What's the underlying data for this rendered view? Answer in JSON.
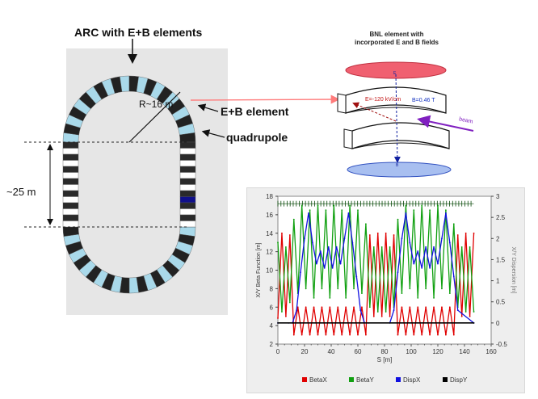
{
  "colors": {
    "panel_bg": "#e6e6e6",
    "magnet_light": "#a9d9ea",
    "magnet_dark": "#222222",
    "magnet_blue": "#10108a",
    "beam_line": "#ff7b7b",
    "plate_top": "#f06070",
    "plate_bottom": "#a0b8f0",
    "betax": "#e00000",
    "betay": "#10a010",
    "dispx": "#1010e0",
    "dispy": "#000000"
  },
  "left_diagram": {
    "arc_label": "ARC with E+B elements",
    "radius_label": "R~16 m",
    "element_label": "E+B element",
    "quad_label": "quadrupole",
    "straight_label": "~25 m"
  },
  "bnl_diagram": {
    "title_line1": "BNL element with",
    "title_line2": "incorporated E and B fields",
    "e_field": "E=-120  kV/cm",
    "b_field": "B=0.46 T",
    "beam": "beam",
    "e_marker": "E",
    "b_marker": "B"
  },
  "chart_data": {
    "type": "line",
    "xlabel": "S [m]",
    "ylabel": "X/Y Beta Function [m]",
    "y2label": "X/Y Dispersion [m]",
    "xlim": [
      0,
      160
    ],
    "ylim": [
      2,
      18
    ],
    "y2lim": [
      -0.5,
      3
    ],
    "x_ticks": [
      0,
      20,
      40,
      60,
      80,
      100,
      120,
      140,
      160
    ],
    "y_ticks": [
      2,
      4,
      6,
      8,
      10,
      12,
      14,
      16,
      18
    ],
    "y2_ticks": [
      -0.5,
      0,
      0.5,
      1,
      1.5,
      2,
      2.5,
      3
    ],
    "x_tick_labels": [
      "0",
      "20",
      "40",
      "60",
      "80",
      "100",
      "120",
      "140",
      "160"
    ],
    "y_tick_labels": [
      "2",
      "4",
      "6",
      "8",
      "10",
      "12",
      "14",
      "16",
      "18"
    ],
    "y2_tick_labels": [
      "-0.5",
      "0",
      "0.5",
      "1",
      "1.5",
      "2",
      "2.5",
      "3"
    ],
    "legend": [
      "BetaX",
      "BetaY",
      "DispX",
      "DispY"
    ],
    "legend_position": "bottom",
    "series": [
      {
        "name": "BetaX",
        "axis": "left",
        "color": "#e00000",
        "x": [
          0,
          3,
          6,
          9,
          12,
          15,
          18,
          21,
          24,
          27,
          30,
          33,
          36,
          39,
          42,
          45,
          48,
          51,
          54,
          57,
          60,
          63,
          66,
          69,
          72,
          75,
          78,
          81,
          84,
          87,
          90,
          93,
          96,
          99,
          102,
          105,
          108,
          111,
          114,
          117,
          120,
          123,
          126,
          129,
          132,
          135,
          138,
          141,
          144,
          147
        ],
        "y": [
          4.8,
          14.0,
          5.0,
          13.8,
          3.0,
          6.0,
          3.0,
          6.0,
          3.0,
          6.0,
          3.0,
          6.0,
          3.0,
          6.0,
          3.0,
          6.0,
          3.0,
          6.0,
          3.0,
          6.0,
          3.0,
          6.0,
          3.0,
          13.8,
          5.0,
          14.0,
          5.0,
          14.0,
          5.0,
          13.8,
          3.0,
          6.0,
          3.0,
          6.0,
          3.0,
          6.0,
          3.0,
          6.0,
          3.0,
          6.0,
          3.0,
          6.0,
          3.0,
          6.0,
          3.0,
          13.8,
          5.0,
          14.0,
          5.0,
          14.0
        ]
      },
      {
        "name": "BetaY",
        "axis": "left",
        "color": "#10a010",
        "x": [
          0,
          3,
          6,
          9,
          12,
          15,
          18,
          21,
          24,
          27,
          30,
          33,
          36,
          39,
          42,
          45,
          48,
          51,
          54,
          57,
          60,
          63,
          66,
          69,
          72,
          75,
          78,
          81,
          84,
          87,
          90,
          93,
          96,
          99,
          102,
          105,
          108,
          111,
          114,
          117,
          120,
          123,
          126,
          129,
          132,
          135,
          138,
          141,
          144,
          147
        ],
        "y": [
          13.0,
          5.5,
          12.5,
          6.5,
          15.5,
          7.5,
          17.0,
          8.0,
          16.5,
          7.0,
          17.0,
          8.0,
          16.5,
          7.0,
          17.0,
          8.0,
          16.5,
          7.0,
          17.0,
          8.0,
          16.5,
          7.5,
          15.0,
          6.0,
          12.5,
          5.5,
          12.5,
          5.5,
          12.5,
          6.0,
          15.5,
          7.5,
          17.0,
          8.0,
          16.5,
          7.0,
          17.0,
          8.0,
          16.5,
          7.0,
          17.0,
          8.0,
          16.5,
          7.5,
          15.0,
          6.0,
          12.5,
          5.5,
          12.5,
          5.5
        ]
      },
      {
        "name": "DispX",
        "axis": "right",
        "color": "#1010e0",
        "x": [
          0,
          8,
          11,
          14,
          17,
          20,
          23,
          26,
          29,
          32,
          35,
          38,
          41,
          44,
          47,
          50,
          53,
          56,
          59,
          62,
          65,
          68,
          84,
          87,
          90,
          93,
          96,
          99,
          102,
          105,
          108,
          111,
          114,
          117,
          120,
          123,
          126,
          129,
          132,
          135,
          147
        ],
        "y": [
          0,
          0,
          0,
          0.3,
          1.2,
          2.0,
          2.6,
          1.9,
          1.4,
          1.7,
          1.3,
          1.8,
          1.3,
          1.8,
          1.4,
          2.0,
          2.6,
          1.9,
          1.1,
          0.3,
          0,
          0,
          0,
          0.3,
          1.2,
          2.0,
          2.6,
          1.9,
          1.4,
          1.7,
          1.3,
          1.8,
          1.3,
          1.8,
          1.4,
          2.0,
          2.6,
          1.9,
          1.1,
          0.3,
          0
        ]
      },
      {
        "name": "DispY",
        "axis": "right",
        "color": "#000000",
        "x": [
          0,
          147
        ],
        "y": [
          0,
          0
        ]
      }
    ]
  }
}
